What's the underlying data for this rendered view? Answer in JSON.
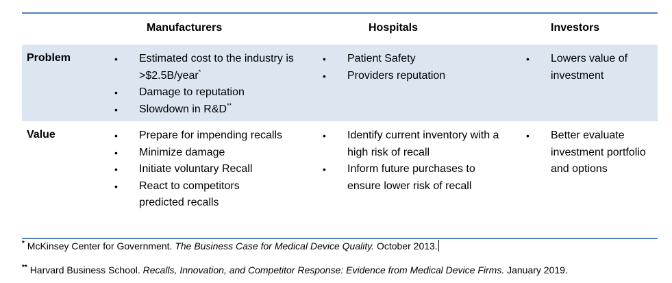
{
  "headers": {
    "manufacturers": "Manufacturers",
    "hospitals": "Hospitals",
    "investors": "Investors"
  },
  "rows": {
    "problem": {
      "label": "Problem",
      "manufacturers": [
        {
          "text": "Estimated cost to the industry is >$2.5B/year",
          "sup": "*"
        },
        {
          "text": "Damage to reputation",
          "sup": ""
        },
        {
          "text": "Slowdown in R&D",
          "sup": "**"
        }
      ],
      "hospitals": [
        "Patient Safety",
        "Providers reputation"
      ],
      "investors": [
        "Lowers value of investment"
      ]
    },
    "value": {
      "label": "Value",
      "manufacturers": [
        "Prepare for impending recalls",
        "Minimize damage",
        "Initiate voluntary Recall",
        "React to competitors predicted recalls"
      ],
      "hospitals": [
        "Identify current inventory with a high risk of recall",
        "Inform future purchases to ensure lower risk of recall"
      ],
      "investors": [
        "Better evaluate investment portfolio and options"
      ]
    }
  },
  "footnotes": [
    {
      "marker": "*",
      "pre": "McKinsey Center for Government. ",
      "title": "The Business Case for Medical Device Quality.",
      "post": " October 2013."
    },
    {
      "marker": "**",
      "pre": "Harvard Business School. ",
      "title": "Recalls, Innovation, and Competitor Response: Evidence from Medical Device Firms.",
      "post": " January 2019."
    }
  ],
  "colors": {
    "rule": "#4f81bd",
    "band": "#dce6f1"
  }
}
